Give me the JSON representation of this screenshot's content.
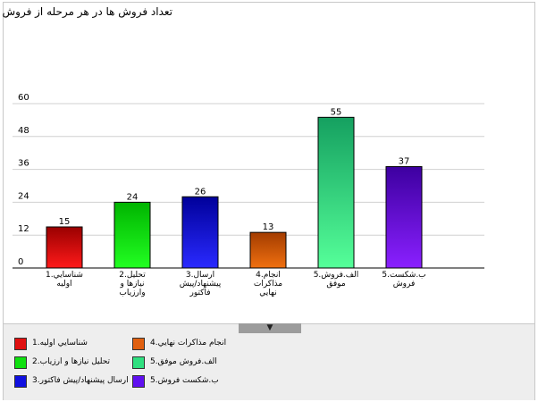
{
  "chart_data": {
    "type": "bar",
    "title": "تعداد فروش ها در هر مرحله از فروش",
    "ylim": [
      0,
      60
    ],
    "yticks": [
      0,
      12,
      24,
      36,
      48,
      60
    ],
    "grid": true,
    "legend_placement": "bottom",
    "categories": [
      [
        "شناسايي.1",
        "اوليه"
      ],
      [
        "تحليل.2",
        "نيازها و",
        "وارزياب"
      ],
      [
        "ارسال.3",
        "پيشنهاد/پيش",
        "فاكتور"
      ],
      [
        "انجام.4",
        "مذاكرات",
        "نهايي"
      ],
      [
        "الف.فروش.5",
        "موفق"
      ],
      [
        "ب.شكست.5",
        "فروش"
      ]
    ],
    "values": [
      15,
      24,
      26,
      13,
      55,
      37
    ],
    "colors": [
      [
        "#ff1a1a",
        "#9a0000"
      ],
      [
        "#22ff22",
        "#00b400"
      ],
      [
        "#2a2aff",
        "#00009a"
      ],
      [
        "#f07010",
        "#a33c00"
      ],
      [
        "#55ff99",
        "#15a060"
      ],
      [
        "#8a20ff",
        "#3d00a0"
      ]
    ],
    "legend": [
      {
        "label": "شناسايي اوليه.1",
        "color": "#e01010"
      },
      {
        "label": "انجام مذاكرات نهايي.4",
        "color": "#e06010"
      },
      {
        "label": "تحليل نيازها و ارزياب.2",
        "color": "#10e010"
      },
      {
        "label": "الف.فروش موفق.5",
        "color": "#30e080"
      },
      {
        "label": "ارسال پيشنهاد/پيش فاكتور.3",
        "color": "#1010e0"
      },
      {
        "label": "ب.شكست فروش.5",
        "color": "#6010f0"
      }
    ]
  },
  "ui": {
    "collapse_glyph": "▼"
  }
}
